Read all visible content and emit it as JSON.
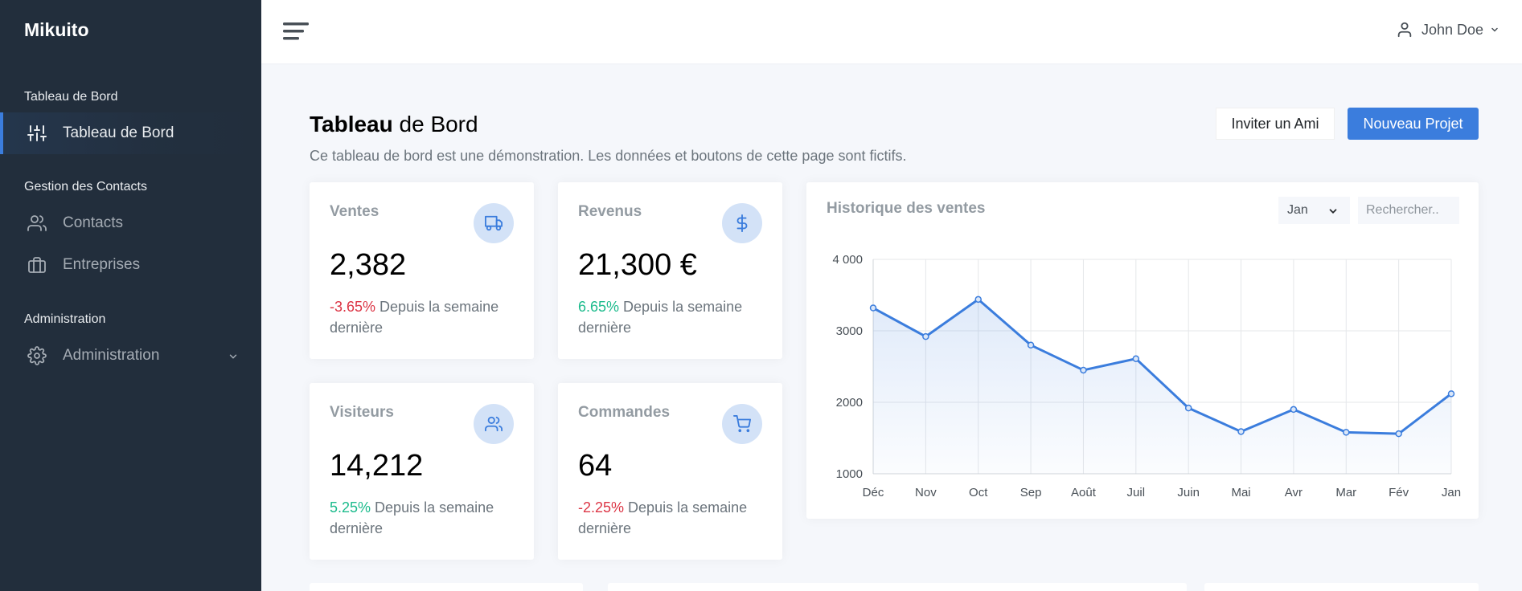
{
  "brand": "Mikuito",
  "sidebar": {
    "sections": [
      {
        "header": "Tableau de Bord",
        "items": [
          {
            "label": "Tableau de Bord",
            "icon": "sliders-icon",
            "active": true
          }
        ]
      },
      {
        "header": "Gestion des Contacts",
        "items": [
          {
            "label": "Contacts",
            "icon": "users-icon"
          },
          {
            "label": "Entreprises",
            "icon": "briefcase-icon"
          }
        ]
      },
      {
        "header": "Administration",
        "items": [
          {
            "label": "Administration",
            "icon": "gear-icon",
            "has_submenu": true
          }
        ]
      }
    ]
  },
  "topbar": {
    "menu_icon": "hamburger-icon",
    "user_name": "John Doe"
  },
  "page": {
    "title_bold": "Tableau",
    "title_rest": " de Bord",
    "subtitle": "Ce tableau de bord est une démonstration. Les données et boutons de cette page sont fictifs.",
    "invite_button": "Inviter un Ami",
    "new_project_button": "Nouveau Projet"
  },
  "stats": [
    {
      "title": "Ventes",
      "value": "2,382",
      "change": "-3.65%",
      "trend": "down",
      "caption": " Depuis la semaine dernière",
      "icon": "truck-icon"
    },
    {
      "title": "Revenus",
      "value": "21,300 €",
      "change": "6.65%",
      "trend": "up",
      "caption": " Depuis la semaine dernière",
      "icon": "dollar-icon"
    },
    {
      "title": "Visiteurs",
      "value": "14,212",
      "change": "5.25%",
      "trend": "up",
      "caption": " Depuis la semaine dernière",
      "icon": "users-icon"
    },
    {
      "title": "Commandes",
      "value": "64",
      "change": "-2.25%",
      "trend": "down",
      "caption": " Depuis la semaine dernière",
      "icon": "cart-icon"
    }
  ],
  "chart_panel": {
    "title": "Historique des ventes",
    "month_selected": "Jan",
    "search_placeholder": "Rechercher.."
  },
  "colors": {
    "accent": "#3b7ddd",
    "sidebar_bg": "#222e3c",
    "negative": "#dc3545",
    "positive": "#1cbb8c"
  },
  "chart_data": {
    "type": "line",
    "title": "Historique des ventes",
    "categories": [
      "Déc",
      "Nov",
      "Oct",
      "Sep",
      "Août",
      "Juil",
      "Juin",
      "Mai",
      "Avr",
      "Mar",
      "Fév",
      "Jan"
    ],
    "series": [
      {
        "values": [
          3320,
          2920,
          3440,
          2800,
          2450,
          2610,
          1920,
          1590,
          1900,
          1580,
          1560,
          2120
        ]
      }
    ],
    "ylim": [
      1000,
      4000
    ],
    "yticks": [
      "1000",
      "2000",
      "3000",
      "4 000"
    ],
    "grid": true,
    "fill": "area"
  }
}
